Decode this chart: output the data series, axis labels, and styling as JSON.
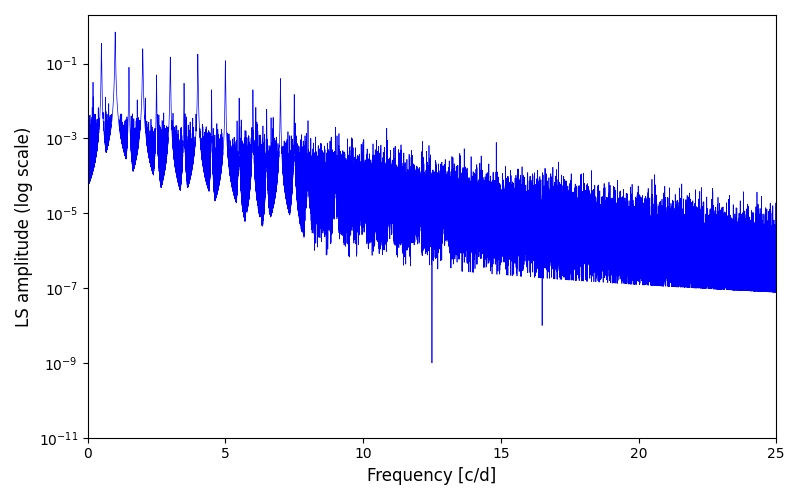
{
  "xlabel": "Frequency [c/d]",
  "ylabel": "LS amplitude (log scale)",
  "line_color": "#0000ff",
  "line_width": 0.5,
  "xlim": [
    0,
    25
  ],
  "ylim": [
    1e-11,
    2.0
  ],
  "freq_max": 25.0,
  "n_points": 50000,
  "seed": 12345,
  "figsize": [
    8.0,
    5.0
  ],
  "dpi": 100,
  "bg_color": "#ffffff"
}
